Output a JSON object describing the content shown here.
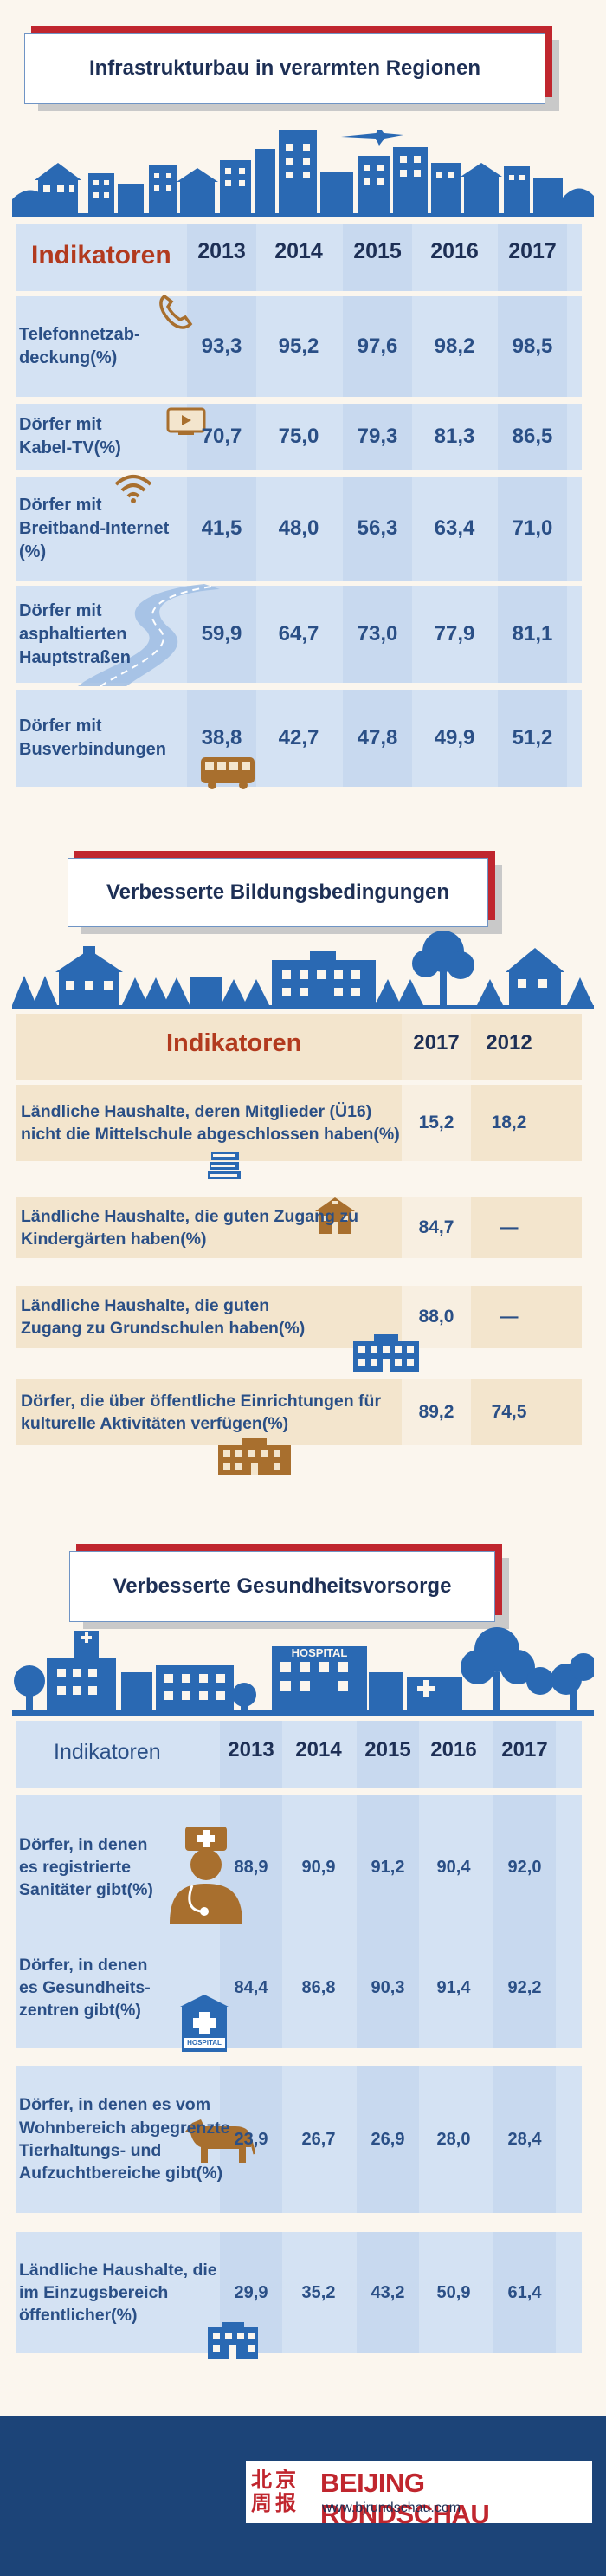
{
  "section1": {
    "title": "Infrastrukturbau in verarmten Regionen",
    "header_label": "Indikatoren",
    "years": [
      "2013",
      "2014",
      "2015",
      "2016",
      "2017"
    ],
    "rows": [
      {
        "label": "Telefonnetzab-\ndeckung(%)",
        "values": [
          "93,3",
          "95,2",
          "97,6",
          "98,2",
          "98,5"
        ],
        "icon": "phone-icon"
      },
      {
        "label": "Dörfer mit\nKabel-TV(%)",
        "values": [
          "70,7",
          "75,0",
          "79,3",
          "81,3",
          "86,5"
        ],
        "icon": "tv-icon"
      },
      {
        "label": "Dörfer mit\nBreitband-Internet\n(%)",
        "values": [
          "41,5",
          "48,0",
          "56,3",
          "63,4",
          "71,0"
        ],
        "icon": "wifi-icon"
      },
      {
        "label": "Dörfer mit\nasphaltierten\nHauptstraßen",
        "values": [
          "59,9",
          "64,7",
          "73,0",
          "77,9",
          "81,1"
        ],
        "icon": "road-icon"
      },
      {
        "label": "Dörfer mit\nBusverbindungen",
        "values": [
          "38,8",
          "42,7",
          "47,8",
          "49,9",
          "51,2"
        ],
        "icon": "bus-icon"
      }
    ]
  },
  "section2": {
    "title": "Verbesserte Bildungsbedingungen",
    "header_label": "Indikatoren",
    "years": [
      "2017",
      "2012"
    ],
    "rows": [
      {
        "label": "Ländliche Haushalte, deren Mitglieder (Ü16)\nnicht die Mittelschule abgeschlossen haben(%)",
        "values": [
          "15,2",
          "18,2"
        ],
        "icon": "books-icon"
      },
      {
        "label": "Ländliche Haushalte, die guten Zugang zu\nKindergärten haben(%)",
        "values": [
          "84,7",
          "—"
        ],
        "icon": "kindergarten-icon"
      },
      {
        "label": "Ländliche Haushalte, die guten\nZugang zu Grundschulen haben(%)",
        "values": [
          "88,0",
          "—"
        ],
        "icon": "school-icon"
      },
      {
        "label": "Dörfer, die über öffentliche Einrichtungen für\nkulturelle Aktivitäten verfügen(%)",
        "values": [
          "89,2",
          "74,5"
        ],
        "icon": "culture-building-icon"
      }
    ]
  },
  "section3": {
    "title": "Verbesserte Gesundheitsvorsorge",
    "hospital_sign": "HOSPITAL",
    "header_label": "Indikatoren",
    "years": [
      "2013",
      "2014",
      "2015",
      "2016",
      "2017"
    ],
    "rows": [
      {
        "label": "Dörfer, in denen\nes registrierte\nSanitäter gibt(%)",
        "values": [
          "88,9",
          "90,9",
          "91,2",
          "90,4",
          "92,0"
        ],
        "icon": "doctor-icon"
      },
      {
        "label": "Dörfer, in denen\nes Gesundheits-\nzentren gibt(%)",
        "values": [
          "84,4",
          "86,8",
          "90,3",
          "91,4",
          "92,2"
        ],
        "icon": "hospital-icon",
        "icon_text": "HOSPITAL"
      },
      {
        "label": "Dörfer, in denen es vom\nWohnbereich abgegrenzte\nTierhaltungs- und\nAufzuchtbereiche gibt(%)",
        "values": [
          "23,9",
          "26,7",
          "26,9",
          "28,0",
          "28,4"
        ],
        "icon": "cow-icon"
      },
      {
        "label": "Ländliche Haushalte, die\nim Einzugsbereich\nöffentlicher(%)",
        "values": [
          "29,9",
          "35,2",
          "43,2",
          "50,9",
          "61,4"
        ],
        "icon": "building-icon"
      }
    ]
  },
  "footer": {
    "chinese": "北京周报",
    "brand": "BEIJING RUNDSCHAU",
    "url": "www.bjrundschau.com"
  },
  "colors": {
    "accent_red": "#c0262e",
    "blue": "#2a69b3",
    "text_blue": "#2a4f86",
    "cream": "#f3e5cd",
    "footer_blue": "#1c4478"
  },
  "chart_data": [
    {
      "type": "table",
      "title": "Infrastrukturbau in verarmten Regionen",
      "columns": [
        "2013",
        "2014",
        "2015",
        "2016",
        "2017"
      ],
      "rows": [
        {
          "name": "Telefonnetzabdeckung(%)",
          "values": [
            93.3,
            95.2,
            97.6,
            98.2,
            98.5
          ]
        },
        {
          "name": "Dörfer mit Kabel-TV(%)",
          "values": [
            70.7,
            75.0,
            79.3,
            81.3,
            86.5
          ]
        },
        {
          "name": "Dörfer mit Breitband-Internet (%)",
          "values": [
            41.5,
            48.0,
            56.3,
            63.4,
            71.0
          ]
        },
        {
          "name": "Dörfer mit asphaltierten Hauptstraßen",
          "values": [
            59.9,
            64.7,
            73.0,
            77.9,
            81.1
          ]
        },
        {
          "name": "Dörfer mit Busverbindungen",
          "values": [
            38.8,
            42.7,
            47.8,
            49.9,
            51.2
          ]
        }
      ]
    },
    {
      "type": "table",
      "title": "Verbesserte Bildungsbedingungen",
      "columns": [
        "2017",
        "2012"
      ],
      "rows": [
        {
          "name": "Ländliche Haushalte, deren Mitglieder (Ü16) nicht die Mittelschule abgeschlossen haben(%)",
          "values": [
            15.2,
            18.2
          ]
        },
        {
          "name": "Ländliche Haushalte, die guten Zugang zu Kindergärten haben(%)",
          "values": [
            84.7,
            null
          ]
        },
        {
          "name": "Ländliche Haushalte, die guten Zugang zu Grundschulen haben(%)",
          "values": [
            88.0,
            null
          ]
        },
        {
          "name": "Dörfer, die über öffentliche Einrichtungen für kulturelle Aktivitäten verfügen(%)",
          "values": [
            89.2,
            74.5
          ]
        }
      ]
    },
    {
      "type": "table",
      "title": "Verbesserte Gesundheitsvorsorge",
      "columns": [
        "2013",
        "2014",
        "2015",
        "2016",
        "2017"
      ],
      "rows": [
        {
          "name": "Dörfer, in denen es registrierte Sanitäter gibt(%)",
          "values": [
            88.9,
            90.9,
            91.2,
            90.4,
            92.0
          ]
        },
        {
          "name": "Dörfer, in denen es Gesundheitszentren gibt(%)",
          "values": [
            84.4,
            86.8,
            90.3,
            91.4,
            92.2
          ]
        },
        {
          "name": "Dörfer, in denen es vom Wohnbereich abgegrenzte Tierhaltungs- und Aufzuchtbereiche gibt(%)",
          "values": [
            23.9,
            26.7,
            26.9,
            28.0,
            28.4
          ]
        },
        {
          "name": "Ländliche Haushalte, die im Einzugsbereich öffentlicher(%)",
          "values": [
            29.9,
            35.2,
            43.2,
            50.9,
            61.4
          ]
        }
      ]
    }
  ]
}
